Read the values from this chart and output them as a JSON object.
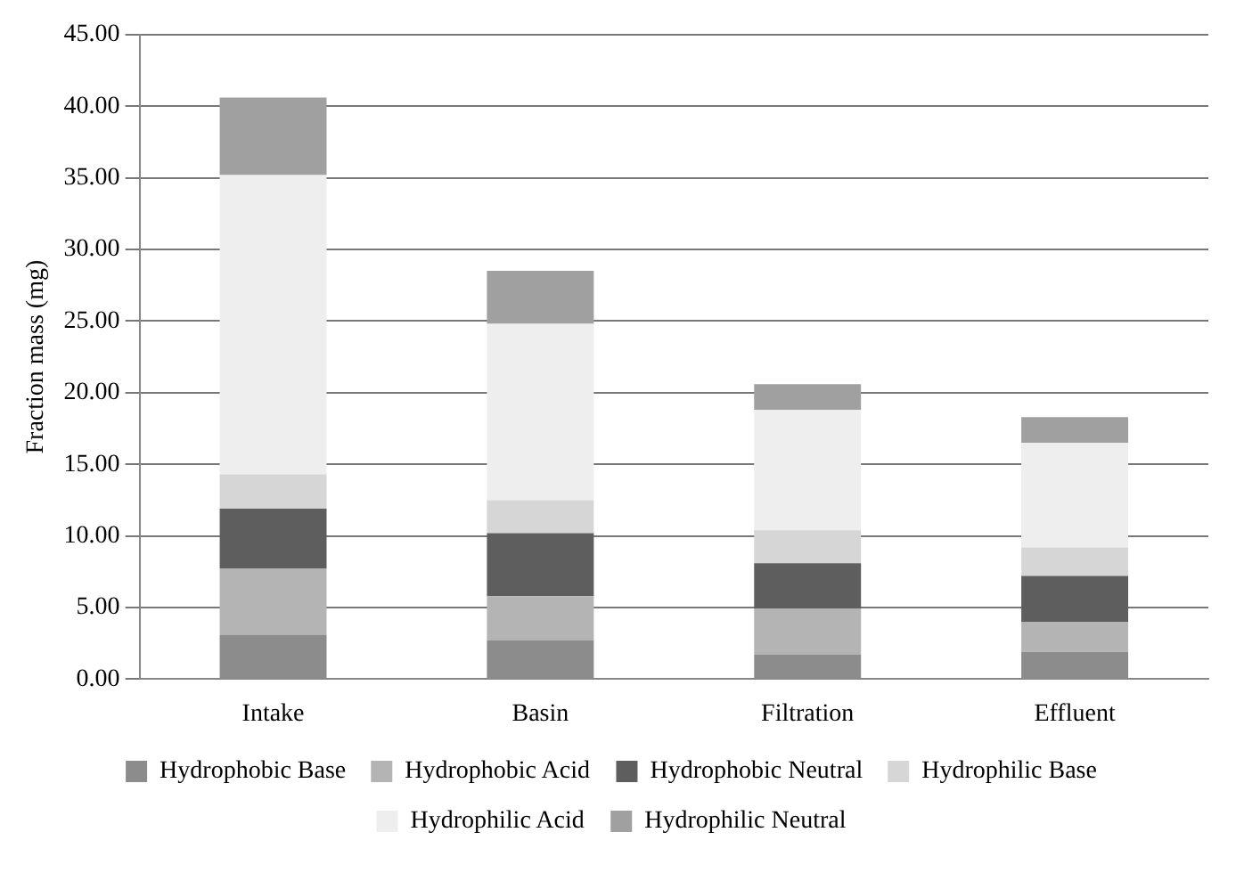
{
  "chart_data": {
    "type": "bar",
    "stacked": true,
    "ylabel": "Fraction mass (mg)",
    "categories": [
      "Intake",
      "Basin",
      "Filtration",
      "Effluent"
    ],
    "series": [
      {
        "name": "Hydrophobic Base",
        "color": "#8c8c8c",
        "values": [
          3.1,
          2.7,
          1.7,
          1.9
        ]
      },
      {
        "name": "Hydrophobic Acid",
        "color": "#b4b4b4",
        "values": [
          4.6,
          3.1,
          3.2,
          2.1
        ]
      },
      {
        "name": "Hydrophobic Neutral",
        "color": "#5e5e5e",
        "values": [
          4.2,
          4.4,
          3.2,
          3.2
        ]
      },
      {
        "name": "Hydrophilic Base",
        "color": "#d6d6d6",
        "values": [
          2.4,
          2.3,
          2.3,
          2.0
        ]
      },
      {
        "name": "Hydrophilic Acid",
        "color": "#eeeeee",
        "values": [
          20.9,
          12.3,
          8.4,
          7.3
        ]
      },
      {
        "name": "Hydrophilic Neutral",
        "color": "#a0a0a0",
        "values": [
          5.4,
          3.7,
          1.8,
          1.8
        ]
      }
    ],
    "ylim": [
      0,
      45
    ],
    "yticks": [
      {
        "value": 0,
        "label": "0.00"
      },
      {
        "value": 5,
        "label": "5.00"
      },
      {
        "value": 10,
        "label": "10.00"
      },
      {
        "value": 15,
        "label": "15.00"
      },
      {
        "value": 20,
        "label": "20.00"
      },
      {
        "value": 25,
        "label": "25.00"
      },
      {
        "value": 30,
        "label": "30.00"
      },
      {
        "value": 35,
        "label": "35.00"
      },
      {
        "value": 40,
        "label": "40.00"
      },
      {
        "value": 45,
        "label": "45.00"
      }
    ],
    "grid": "y",
    "legend": "bottom"
  }
}
